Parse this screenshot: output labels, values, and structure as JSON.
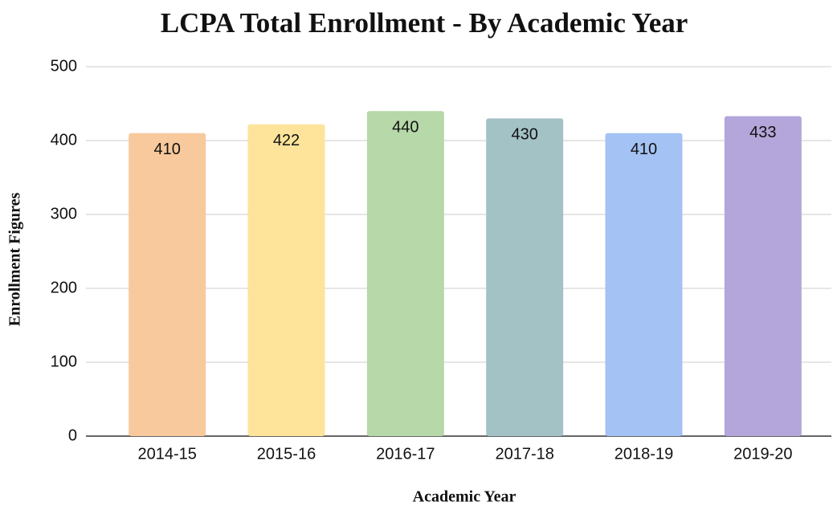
{
  "chart_data": {
    "type": "bar",
    "title": "LCPA Total Enrollment - By Academic Year",
    "x_label": "Academic Year",
    "y_label": "Enrollment Figures",
    "categories": [
      "2014-15",
      "2015-16",
      "2016-17",
      "2017-18",
      "2018-19",
      "2019-20"
    ],
    "values": [
      410,
      422,
      440,
      430,
      410,
      433
    ],
    "colors": [
      "#f8c99c",
      "#fde49a",
      "#b7d8a9",
      "#a3c2c6",
      "#a4c2f3",
      "#b4a6da"
    ],
    "ylim": [
      0,
      500
    ],
    "yticks": [
      0,
      100,
      200,
      300,
      400,
      500
    ],
    "grid": true
  }
}
